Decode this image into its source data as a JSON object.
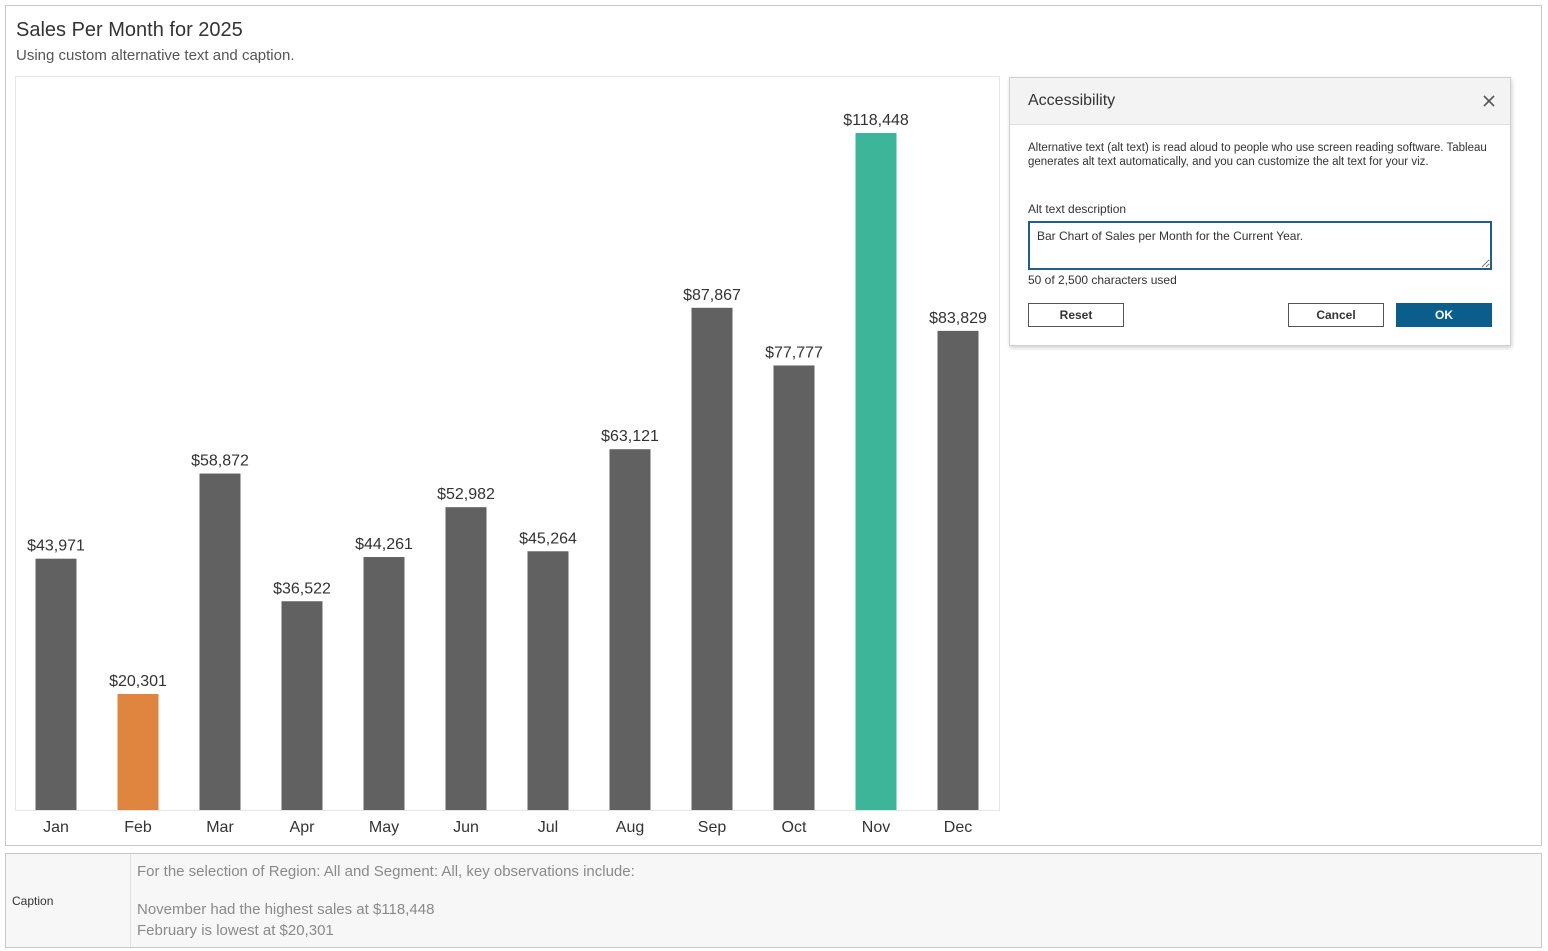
{
  "header": {
    "title": "Sales Per Month for 2025",
    "subtitle": "Using custom alternative text and caption."
  },
  "chart_data": {
    "type": "bar",
    "title": "Sales Per Month for 2025",
    "subtitle": "Using custom alternative text and caption.",
    "xlabel": "",
    "ylabel": "",
    "categories": [
      "Jan",
      "Feb",
      "Mar",
      "Apr",
      "May",
      "Jun",
      "Jul",
      "Aug",
      "Sep",
      "Oct",
      "Nov",
      "Dec"
    ],
    "values": [
      43971,
      20301,
      58872,
      36522,
      44261,
      52982,
      45264,
      63121,
      87867,
      77777,
      118448,
      83829
    ],
    "value_labels": [
      "$43,971",
      "$20,301",
      "$58,872",
      "$36,522",
      "$44,261",
      "$52,982",
      "$45,264",
      "$63,121",
      "$87,867",
      "$77,777",
      "$118,448",
      "$83,829"
    ],
    "ylim": [
      0,
      118448
    ],
    "grid": false,
    "colors": {
      "default": "#616161",
      "lowest": "#e0853f",
      "highest": "#3db598"
    },
    "highlight": {
      "lowest": "Feb",
      "highest": "Nov"
    }
  },
  "dialog": {
    "title": "Accessibility",
    "close_icon": "close-icon",
    "description": "Alternative text (alt text) is read aloud to people who use screen reading software. Tableau generates alt text automatically, and you can customize the alt text for your viz.",
    "alt_label": "Alt text description",
    "alt_value": "Bar Chart of Sales per Month for the Current Year.",
    "char_count": "50 of 2,500 characters used",
    "reset_label": "Reset",
    "cancel_label": "Cancel",
    "ok_label": "OK",
    "ok_color": "#0b5e8c"
  },
  "caption": {
    "label": "Caption",
    "line1": "For the selection of Region: All and Segment: All, key observations include:",
    "line2": "November had the highest sales at $118,448",
    "line3": "February is lowest at $20,301"
  }
}
